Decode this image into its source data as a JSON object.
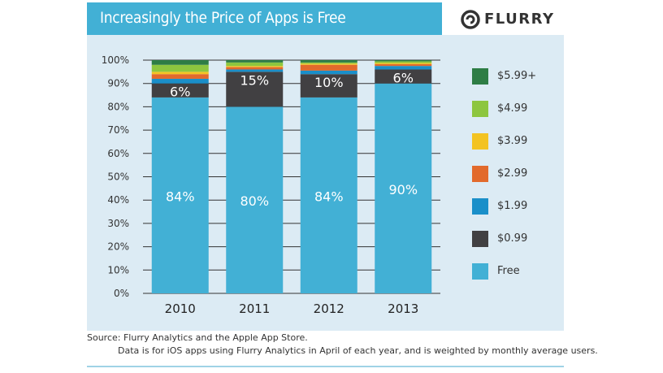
{
  "header": {
    "title": "Increasingly the Price of Apps is Free",
    "logo_text": "FLURRY",
    "logo_icon": "flurry-swirl-icon"
  },
  "footer": {
    "source_line1": "Source: Flurry Analytics and the Apple App Store.",
    "source_line2": "Data is for iOS apps using Flurry Analytics in April of each year, and is weighted by monthly average users."
  },
  "colors": {
    "panel_bg": "#dcebf4",
    "title_bg": "#42b0d5",
    "grid": "#333333"
  },
  "chart_data": {
    "type": "bar",
    "stacked": true,
    "title": "Increasingly the Price of Apps is Free",
    "xlabel": "",
    "ylabel": "",
    "ylim": [
      0,
      100
    ],
    "y_ticks": [
      "0%",
      "10%",
      "20%",
      "30%",
      "40%",
      "50%",
      "60%",
      "70%",
      "80%",
      "90%",
      "100%"
    ],
    "y_tick_values": [
      0,
      10,
      20,
      30,
      40,
      50,
      60,
      70,
      80,
      90,
      100
    ],
    "grid": true,
    "legend_position": "right",
    "categories": [
      "2010",
      "2011",
      "2012",
      "2013"
    ],
    "series": [
      {
        "name": "Free",
        "color": "#42b0d5",
        "values": [
          84,
          80,
          84,
          90
        ],
        "labels": [
          "84%",
          "80%",
          "84%",
          "90%"
        ]
      },
      {
        "name": "$0.99",
        "color": "#414042",
        "values": [
          6,
          15,
          10,
          6
        ],
        "labels": [
          "6%",
          "15%",
          "10%",
          "6%"
        ]
      },
      {
        "name": "$1.99",
        "color": "#1a8fc9",
        "values": [
          2,
          1,
          1.5,
          1.5
        ],
        "labels": [
          "",
          "",
          "",
          ""
        ]
      },
      {
        "name": "$2.99",
        "color": "#e26a2c",
        "values": [
          2,
          1,
          2.5,
          0.8
        ],
        "labels": [
          "",
          "",
          "",
          ""
        ]
      },
      {
        "name": "$3.99",
        "color": "#f3c322",
        "values": [
          1,
          0.5,
          0.5,
          0.5
        ],
        "labels": [
          "",
          "",
          "",
          ""
        ]
      },
      {
        "name": "$4.99",
        "color": "#8dc63f",
        "values": [
          3,
          1.5,
          0.5,
          0.7
        ],
        "labels": [
          "",
          "",
          "",
          ""
        ]
      },
      {
        "name": "$5.99+",
        "color": "#2e7d45",
        "values": [
          2,
          1,
          1,
          0.5
        ],
        "labels": [
          "",
          "",
          "",
          ""
        ]
      }
    ],
    "legend_order": [
      "$5.99+",
      "$4.99",
      "$3.99",
      "$2.99",
      "$1.99",
      "$0.99",
      "Free"
    ]
  }
}
